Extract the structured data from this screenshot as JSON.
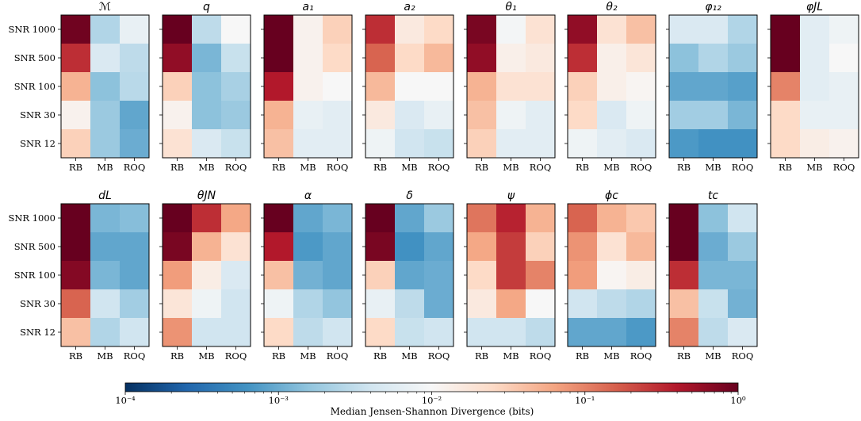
{
  "chart_data": {
    "type": "heatmap",
    "layout": "grid of 15 heatmap panels (2 rows)",
    "x_categories": [
      "RB",
      "MB",
      "ROQ"
    ],
    "y_categories": [
      "SNR 1000",
      "SNR 500",
      "SNR 100",
      "SNR 30",
      "SNR 12"
    ],
    "panels": [
      {
        "title": "ℳ",
        "values": [
          [
            0.9,
            0.0025,
            0.007
          ],
          [
            0.3,
            0.005,
            0.003
          ],
          [
            0.05,
            0.0015,
            0.0028
          ],
          [
            0.012,
            0.0018,
            0.0009
          ],
          [
            0.03,
            0.0018,
            0.001
          ]
        ]
      },
      {
        "title": "q",
        "values": [
          [
            1.0,
            0.003,
            0.01
          ],
          [
            0.6,
            0.0012,
            0.0035
          ],
          [
            0.03,
            0.0015,
            0.0022
          ],
          [
            0.012,
            0.0015,
            0.0018
          ],
          [
            0.02,
            0.005,
            0.0035
          ]
        ]
      },
      {
        "title": "a₁",
        "values": [
          [
            1.0,
            0.012,
            0.03
          ],
          [
            1.0,
            0.012,
            0.025
          ],
          [
            0.4,
            0.012,
            0.01
          ],
          [
            0.05,
            0.007,
            0.006
          ],
          [
            0.04,
            0.006,
            0.006
          ]
        ]
      },
      {
        "title": "a₂",
        "values": [
          [
            0.3,
            0.016,
            0.025
          ],
          [
            0.15,
            0.025,
            0.045
          ],
          [
            0.045,
            0.01,
            0.01
          ],
          [
            0.016,
            0.005,
            0.007
          ],
          [
            0.008,
            0.004,
            0.0035
          ]
        ]
      },
      {
        "title": "θ₁",
        "values": [
          [
            0.8,
            0.009,
            0.02
          ],
          [
            0.6,
            0.013,
            0.016
          ],
          [
            0.05,
            0.02,
            0.02
          ],
          [
            0.04,
            0.008,
            0.006
          ],
          [
            0.03,
            0.006,
            0.006
          ]
        ]
      },
      {
        "title": "θ₂",
        "values": [
          [
            0.6,
            0.02,
            0.04
          ],
          [
            0.3,
            0.013,
            0.018
          ],
          [
            0.03,
            0.013,
            0.011
          ],
          [
            0.025,
            0.005,
            0.008
          ],
          [
            0.008,
            0.006,
            0.005
          ]
        ]
      },
      {
        "title": "φ₁₂",
        "values": [
          [
            0.005,
            0.005,
            0.0025
          ],
          [
            0.0015,
            0.0025,
            0.0018
          ],
          [
            0.0009,
            0.0009,
            0.0008
          ],
          [
            0.002,
            0.002,
            0.0012
          ],
          [
            0.0007,
            0.0006,
            0.0006
          ]
        ]
      },
      {
        "title": "φJL",
        "values": [
          [
            1.0,
            0.006,
            0.008
          ],
          [
            1.0,
            0.006,
            0.01
          ],
          [
            0.1,
            0.006,
            0.007
          ],
          [
            0.025,
            0.007,
            0.007
          ],
          [
            0.025,
            0.014,
            0.012
          ]
        ]
      },
      {
        "title": "dL",
        "values": [
          [
            1.0,
            0.0012,
            0.0014
          ],
          [
            1.0,
            0.0009,
            0.0009
          ],
          [
            0.7,
            0.0012,
            0.0009
          ],
          [
            0.15,
            0.004,
            0.002
          ],
          [
            0.04,
            0.0025,
            0.004
          ]
        ]
      },
      {
        "title": "θJN",
        "values": [
          [
            1.0,
            0.3,
            0.06
          ],
          [
            0.8,
            0.05,
            0.02
          ],
          [
            0.07,
            0.014,
            0.005
          ],
          [
            0.018,
            0.008,
            0.004
          ],
          [
            0.08,
            0.004,
            0.004
          ]
        ]
      },
      {
        "title": "α",
        "values": [
          [
            1.0,
            0.0009,
            0.0012
          ],
          [
            0.4,
            0.0007,
            0.0009
          ],
          [
            0.04,
            0.0011,
            0.0009
          ],
          [
            0.008,
            0.0025,
            0.0016
          ],
          [
            0.025,
            0.003,
            0.004
          ]
        ]
      },
      {
        "title": "δ",
        "values": [
          [
            1.0,
            0.0009,
            0.0018
          ],
          [
            0.8,
            0.0006,
            0.0009
          ],
          [
            0.03,
            0.0009,
            0.001
          ],
          [
            0.007,
            0.003,
            0.001
          ],
          [
            0.025,
            0.0035,
            0.004
          ]
        ]
      },
      {
        "title": "ψ",
        "values": [
          [
            0.12,
            0.35,
            0.05
          ],
          [
            0.06,
            0.25,
            0.03
          ],
          [
            0.025,
            0.25,
            0.1
          ],
          [
            0.016,
            0.06,
            0.01
          ],
          [
            0.004,
            0.004,
            0.003
          ]
        ]
      },
      {
        "title": "ϕc",
        "values": [
          [
            0.15,
            0.05,
            0.035
          ],
          [
            0.08,
            0.02,
            0.045
          ],
          [
            0.07,
            0.011,
            0.014
          ],
          [
            0.004,
            0.003,
            0.0025
          ],
          [
            0.0009,
            0.0009,
            0.0007
          ]
        ]
      },
      {
        "title": "tc",
        "values": [
          [
            1.0,
            0.0015,
            0.004
          ],
          [
            1.0,
            0.001,
            0.0018
          ],
          [
            0.3,
            0.0012,
            0.0012
          ],
          [
            0.04,
            0.0035,
            0.0011
          ],
          [
            0.1,
            0.003,
            0.005
          ]
        ]
      }
    ],
    "colorbar": {
      "label": "Median Jensen-Shannon Divergence (bits)",
      "scale": "log",
      "range": [
        0.0001,
        1
      ],
      "ticks": [
        "10⁻⁴",
        "10⁻³",
        "10⁻²",
        "10⁻¹",
        "10⁰"
      ],
      "colormap": "RdBu_r",
      "stops": [
        "#053061",
        "#2166ac",
        "#4393c3",
        "#92c5de",
        "#d1e5f0",
        "#f7f7f7",
        "#fddbc7",
        "#f4a582",
        "#d6604d",
        "#b2182b",
        "#67001f"
      ]
    }
  }
}
